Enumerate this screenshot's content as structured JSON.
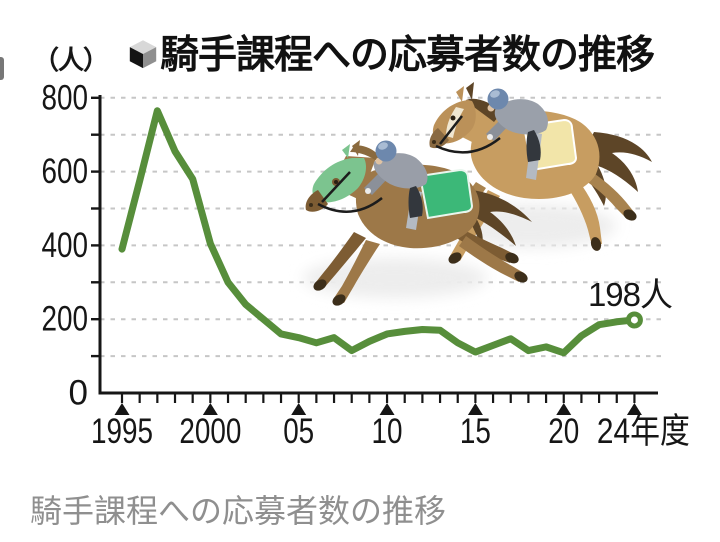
{
  "header": {
    "unit_label": "（人）",
    "title": "騎手課程への応募者数の推移",
    "title_icon": "cube-icon"
  },
  "caption": "騎手課程への応募者数の推移",
  "annotation": {
    "text": "198人"
  },
  "illustration": {
    "name": "two-racehorses-with-jockeys"
  },
  "colors": {
    "line": "#578e3b",
    "grid": "#c6c6c6",
    "axis": "#161616",
    "caption_text": "#8f8f8f",
    "marker_fill": "#ffffff"
  },
  "chart_data": {
    "type": "line",
    "title": "騎手課程への応募者数の推移",
    "unit": "人",
    "x": [
      1995,
      1996,
      1997,
      1998,
      1999,
      2000,
      2001,
      2002,
      2003,
      2004,
      2005,
      2006,
      2007,
      2008,
      2009,
      2010,
      2011,
      2012,
      2013,
      2014,
      2015,
      2016,
      2017,
      2018,
      2019,
      2020,
      2021,
      2022,
      2023,
      2024
    ],
    "values": [
      390,
      575,
      765,
      655,
      580,
      405,
      300,
      240,
      200,
      160,
      150,
      136,
      150,
      115,
      140,
      160,
      167,
      172,
      170,
      136,
      111,
      129,
      147,
      115,
      125,
      109,
      155,
      185,
      193,
      198
    ],
    "ylim": [
      0,
      800
    ],
    "grid_step": 100,
    "grid_style": "dashed-horizontal",
    "y_tick_labels": [
      0,
      200,
      400,
      600,
      800
    ],
    "x_tick_labels": [
      {
        "x": 1995,
        "label": "1995"
      },
      {
        "x": 2000,
        "label": "2000"
      },
      {
        "x": 2005,
        "label": "05"
      },
      {
        "x": 2010,
        "label": "10"
      },
      {
        "x": 2015,
        "label": "15"
      },
      {
        "x": 2020,
        "label": "20"
      },
      {
        "x": 2024,
        "label": "24年度"
      }
    ],
    "x_minor_ticks": "every-year",
    "annotation": {
      "x": 2024,
      "value": 198,
      "text": "198人"
    },
    "end_marker": "open-circle",
    "legend": "none"
  }
}
